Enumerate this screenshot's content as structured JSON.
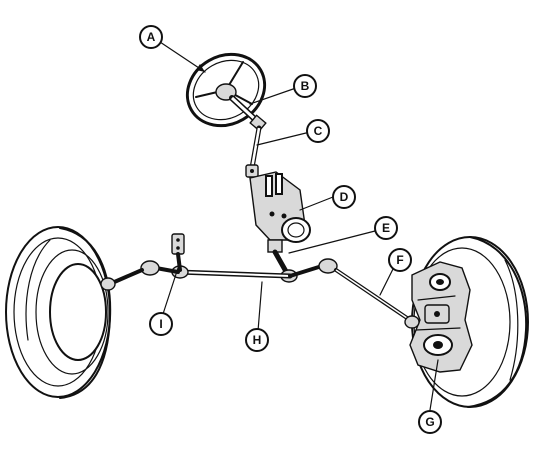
{
  "figure": {
    "callouts": [
      "A",
      "B",
      "C",
      "D",
      "E",
      "F",
      "G",
      "H",
      "I"
    ]
  },
  "colors": {
    "ink": "#111111",
    "paper": "#ffffff",
    "shade": "#d9d9d9"
  }
}
